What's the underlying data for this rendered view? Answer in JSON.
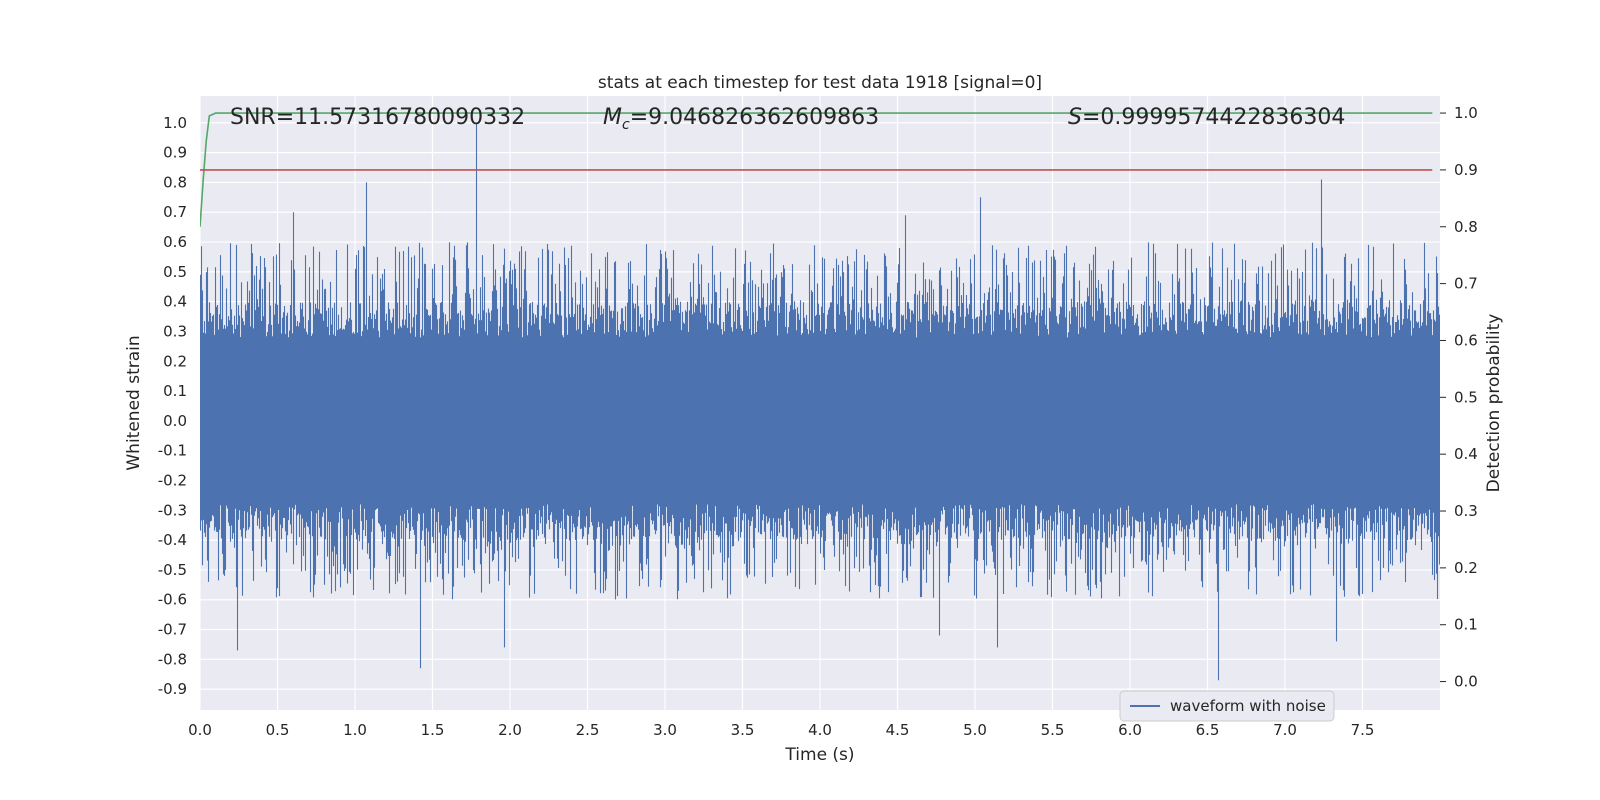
{
  "chart_data": {
    "type": "line",
    "title": "stats at each timestep for test data 1918 [signal=0]",
    "xlabel": "Time (s)",
    "ylabel": "Whitened strain",
    "y2label": "Detection probability",
    "xlim": [
      0.0,
      8.0
    ],
    "ylim": [
      -0.97,
      1.09
    ],
    "y2lim": [
      -0.05,
      1.03
    ],
    "xticks": [
      "0.0",
      "0.5",
      "1.0",
      "1.5",
      "2.0",
      "2.5",
      "3.0",
      "3.5",
      "4.0",
      "4.5",
      "5.0",
      "5.5",
      "6.0",
      "6.5",
      "7.0",
      "7.5"
    ],
    "yticks": [
      "1.0",
      "0.9",
      "0.8",
      "0.7",
      "0.6",
      "0.5",
      "0.4",
      "0.3",
      "0.2",
      "0.1",
      "0.0",
      "-0.1",
      "-0.2",
      "-0.3",
      "-0.4",
      "-0.5",
      "-0.6",
      "-0.7",
      "-0.8",
      "-0.9"
    ],
    "y2ticks": [
      "1.0",
      "0.9",
      "0.8",
      "0.7",
      "0.6",
      "0.5",
      "0.4",
      "0.3",
      "0.2",
      "0.1",
      "0.0"
    ],
    "grid": true,
    "legend": {
      "position": "lower-right",
      "entries": [
        "waveform with noise"
      ]
    },
    "annotations": {
      "snr": "SNR=11.57316780090332",
      "mc_symbol": "M",
      "mc_sub": "c",
      "mc_value": "=9.046826362609863",
      "s_symbol": "S",
      "s_value": "=0.9999574422836304"
    },
    "series": [
      {
        "name": "waveform with noise",
        "axis": "left",
        "color": "#4c72b0",
        "peaks": [
          {
            "x": 1.78,
            "y": 1.0
          },
          {
            "x": 1.07,
            "y": 0.8
          },
          {
            "x": 7.23,
            "y": 0.81
          },
          {
            "x": 5.03,
            "y": 0.75
          },
          {
            "x": 4.55,
            "y": 0.69
          },
          {
            "x": 0.6,
            "y": 0.7
          },
          {
            "x": 6.57,
            "y": -0.87
          },
          {
            "x": 1.42,
            "y": -0.83
          },
          {
            "x": 0.24,
            "y": -0.77
          },
          {
            "x": 1.96,
            "y": -0.76
          },
          {
            "x": 4.77,
            "y": -0.72
          },
          {
            "x": 5.14,
            "y": -0.76
          },
          {
            "x": 7.33,
            "y": -0.74
          },
          {
            "x": 4.12,
            "y": -0.08
          }
        ],
        "envelope_typical": [
          -0.55,
          0.55
        ]
      },
      {
        "axis": "right",
        "color": "#55a868",
        "x": [
          0.0,
          0.02,
          0.04,
          0.06,
          0.1,
          0.2,
          1.0,
          2.0,
          3.0,
          4.0,
          5.0,
          6.0,
          7.0,
          7.95
        ],
        "y": [
          0.8,
          0.88,
          0.95,
          0.995,
          1.0,
          1.0,
          1.0,
          1.0,
          1.0,
          1.0,
          1.0,
          1.0,
          1.0,
          1.0
        ]
      },
      {
        "axis": "right",
        "color": "#c44e52",
        "x": [
          0.0,
          7.95
        ],
        "y": [
          0.9,
          0.9
        ]
      }
    ]
  }
}
